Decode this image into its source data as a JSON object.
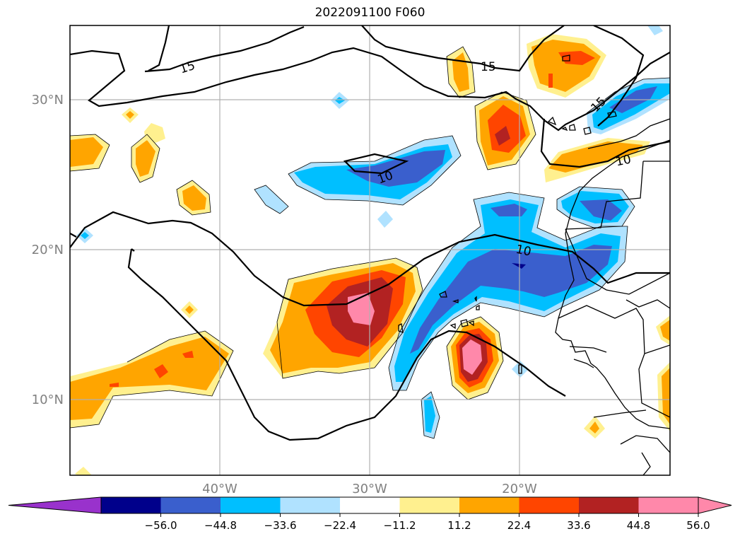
{
  "title": "2022091100 F060",
  "map": {
    "lat_labels": [
      "30°N",
      "20°N",
      "10°N"
    ],
    "lon_labels": [
      "40°W",
      "30°W",
      "20°W"
    ],
    "contour_labels": [
      "15",
      "15",
      "15",
      "10",
      "10",
      "10"
    ],
    "grid": true
  },
  "colorbar": {
    "extend": "both",
    "colors": [
      "#9932cc",
      "#00008b",
      "#3a5fcd",
      "#00bfff",
      "#b0e2ff",
      "#ffffff",
      "#fff08f",
      "#ffa500",
      "#ff4500",
      "#b22222",
      "#ff88aa",
      "#ff88aa"
    ],
    "tick_labels": [
      "−56.0",
      "−44.8",
      "−33.6",
      "−22.4",
      "−11.2",
      "11.2",
      "22.4",
      "33.6",
      "44.8",
      "56.0"
    ]
  },
  "fill_colors": {
    "pale_yellow": "#fff08f",
    "orange": "#ffa500",
    "red_orange": "#ff4500",
    "dark_red": "#b22222",
    "pink": "#ff88aa",
    "pale_blue": "#b0e2ff",
    "deep_sky_blue": "#00bfff",
    "royal_blue": "#3a5fcd",
    "navy": "#00008b"
  }
}
